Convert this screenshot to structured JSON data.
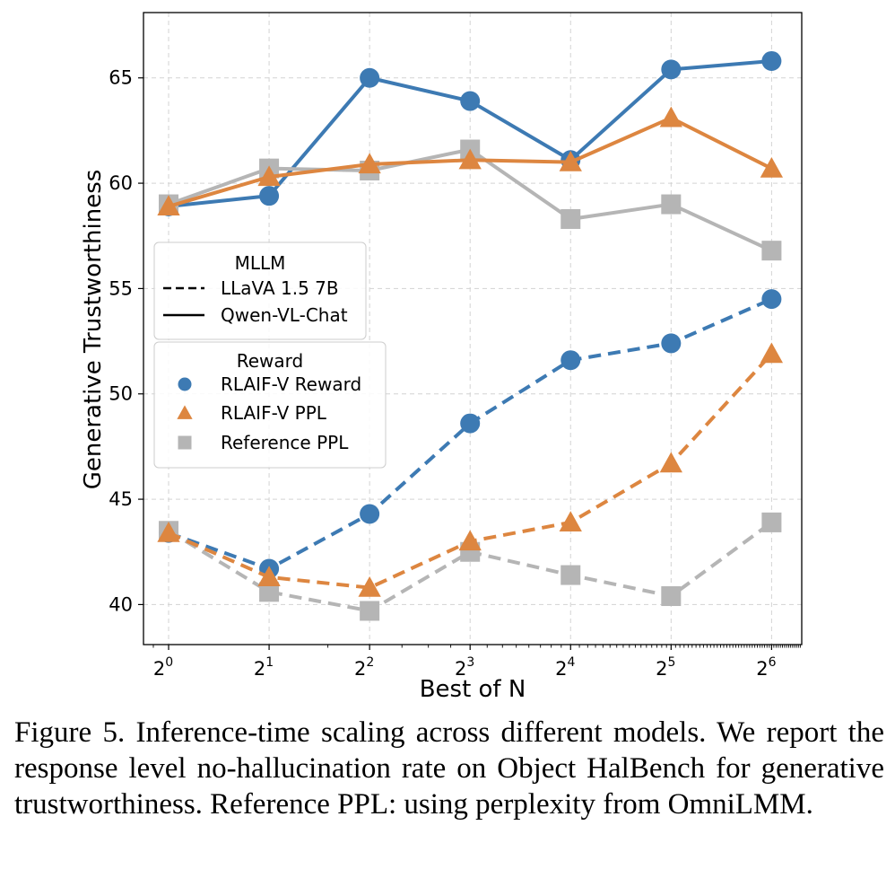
{
  "chart_data": {
    "type": "line",
    "xlabel": "Best of N",
    "ylabel": "Generative Trustworthiness",
    "x": [
      0,
      1,
      2,
      3,
      4,
      5,
      6
    ],
    "x_tick_labels": [
      {
        "base": "2",
        "exp": "0"
      },
      {
        "base": "2",
        "exp": "1"
      },
      {
        "base": "2",
        "exp": "2"
      },
      {
        "base": "2",
        "exp": "3"
      },
      {
        "base": "2",
        "exp": "4"
      },
      {
        "base": "2",
        "exp": "5"
      },
      {
        "base": "2",
        "exp": "6"
      }
    ],
    "x_scale": "log2",
    "xlim": [
      -0.25,
      6.3
    ],
    "ylim": [
      38.1,
      68.1
    ],
    "y_ticks": [
      40,
      45,
      50,
      55,
      60,
      65
    ],
    "grid": true,
    "series": [
      {
        "name": "Qwen-VL-Chat / RLAIF-V Reward",
        "model": "Qwen-VL-Chat",
        "reward": "RLAIF-V Reward",
        "linestyle": "solid",
        "marker": "circle",
        "color": "#3d7ab3",
        "values": [
          58.9,
          59.4,
          65.0,
          63.9,
          61.1,
          65.4,
          65.8
        ]
      },
      {
        "name": "Qwen-VL-Chat / Reference PPL",
        "model": "Qwen-VL-Chat",
        "reward": "Reference PPL",
        "linestyle": "solid",
        "marker": "square",
        "color": "#b5b5b5",
        "values": [
          59.0,
          60.7,
          60.6,
          61.6,
          58.3,
          59.0,
          56.8
        ]
      },
      {
        "name": "Qwen-VL-Chat / RLAIF-V PPL",
        "model": "Qwen-VL-Chat",
        "reward": "RLAIF-V PPL",
        "linestyle": "solid",
        "marker": "triangle",
        "color": "#dd8640",
        "values": [
          58.9,
          60.3,
          60.9,
          61.1,
          61.0,
          63.1,
          60.7
        ]
      },
      {
        "name": "LLaVA 1.5 7B / RLAIF-V Reward",
        "model": "LLaVA 1.5 7B",
        "reward": "RLAIF-V Reward",
        "linestyle": "dashed",
        "marker": "circle",
        "color": "#3d7ab3",
        "values": [
          43.4,
          41.7,
          44.3,
          48.6,
          51.6,
          52.4,
          54.5
        ]
      },
      {
        "name": "LLaVA 1.5 7B / Reference PPL",
        "model": "LLaVA 1.5 7B",
        "reward": "Reference PPL",
        "linestyle": "dashed",
        "marker": "square",
        "color": "#b5b5b5",
        "values": [
          43.5,
          40.6,
          39.7,
          42.5,
          41.4,
          40.4,
          43.9
        ]
      },
      {
        "name": "LLaVA 1.5 7B / RLAIF-V PPL",
        "model": "LLaVA 1.5 7B",
        "reward": "RLAIF-V PPL",
        "linestyle": "dashed",
        "marker": "triangle",
        "color": "#dd8640",
        "values": [
          43.4,
          41.3,
          40.8,
          43.0,
          43.9,
          46.7,
          51.9
        ]
      }
    ],
    "legends": [
      {
        "title": "MLLM",
        "placement": "center-left",
        "entries": [
          {
            "label": "LLaVA 1.5 7B",
            "linestyle": "dashed"
          },
          {
            "label": "Qwen-VL-Chat",
            "linestyle": "solid"
          }
        ]
      },
      {
        "title": "Reward",
        "placement": "center-left",
        "entries": [
          {
            "label": "RLAIF-V Reward",
            "marker": "circle",
            "color": "#3d7ab3"
          },
          {
            "label": "RLAIF-V PPL",
            "marker": "triangle",
            "color": "#dd8640"
          },
          {
            "label": "Reference PPL",
            "marker": "square",
            "color": "#b5b5b5"
          }
        ]
      }
    ]
  },
  "caption": "Figure 5. Inference-time scaling across different models. We report the response level no-hallucination rate on Object HalBench for generative trustworthiness. Reference PPL: using perplexity from OmniLMM."
}
